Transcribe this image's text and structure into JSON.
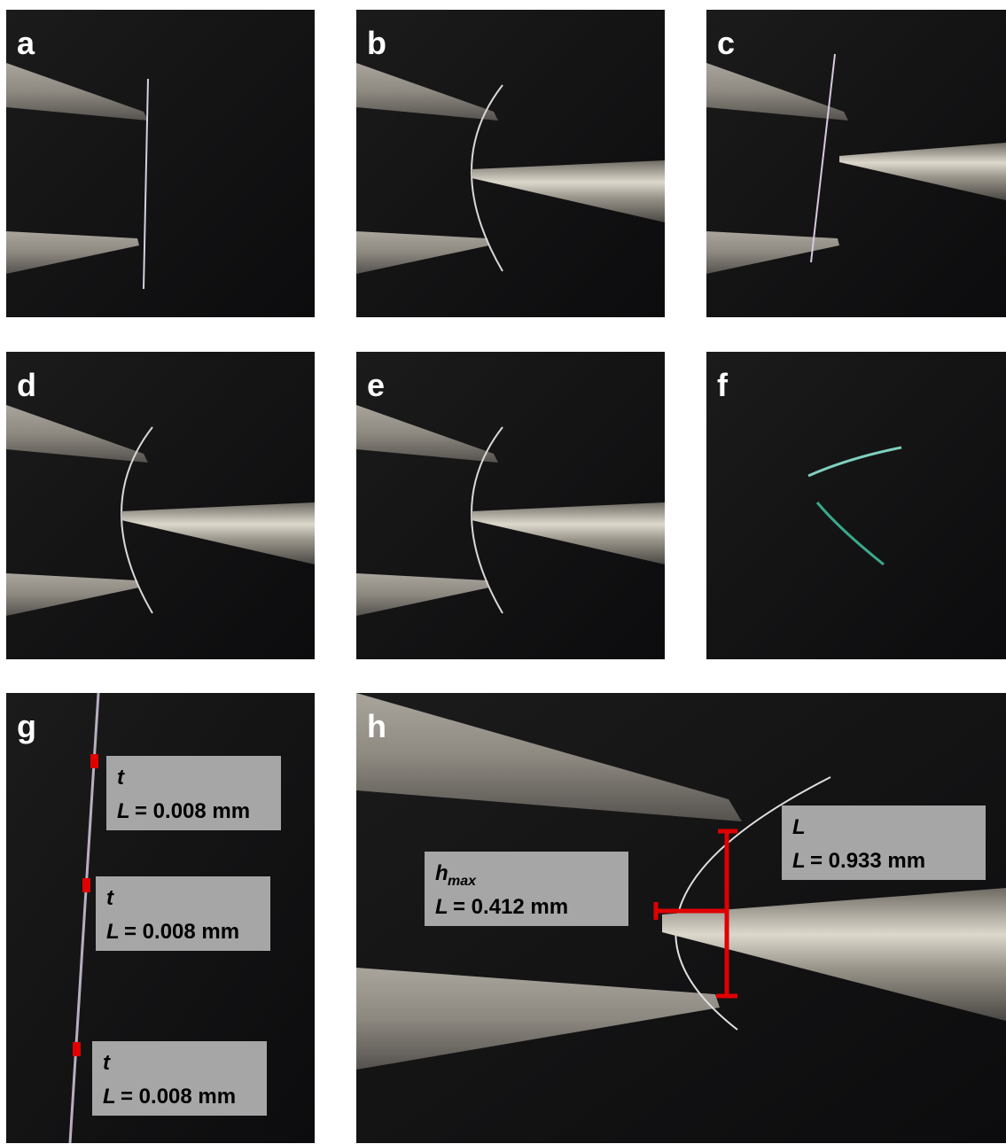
{
  "panels": [
    {
      "label": "a"
    },
    {
      "label": "b"
    },
    {
      "label": "c"
    },
    {
      "label": "d"
    },
    {
      "label": "e"
    },
    {
      "label": "f"
    },
    {
      "label": "g"
    },
    {
      "label": "h"
    }
  ],
  "annotations_g": [
    {
      "name": "t",
      "measure": "L",
      "value": "= 0.008 mm"
    },
    {
      "name": "t",
      "measure": "L",
      "value": "= 0.008 mm"
    },
    {
      "name": "t",
      "measure": "L",
      "value": "= 0.008 mm"
    }
  ],
  "annotations_h": [
    {
      "name": "L",
      "measure": "L",
      "value": "= 0.933 mm"
    },
    {
      "name": "h",
      "name_sub": "max",
      "measure": "L",
      "value": "= 0.412 mm"
    }
  ]
}
